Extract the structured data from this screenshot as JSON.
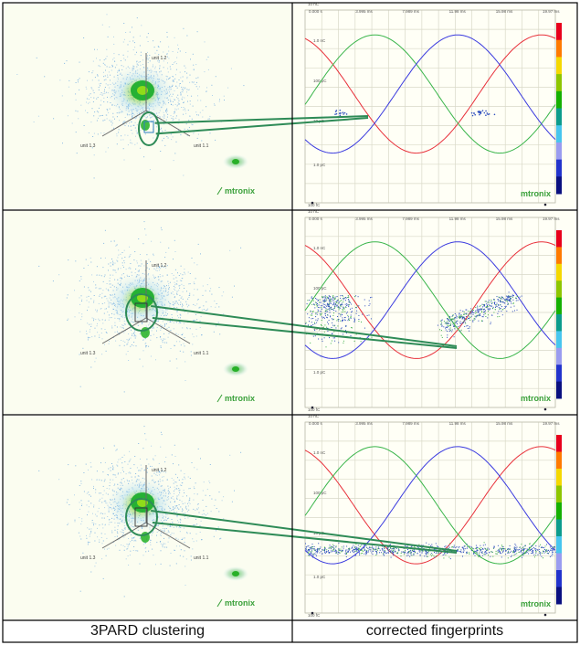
{
  "captions": {
    "left": "3PARD clustering",
    "right": "corrected fingerprints"
  },
  "cluster_plot": {
    "axis_labels": [
      "unit 1.2",
      "unit 1.3",
      "unit 1.1"
    ],
    "logo_text": "mtronix"
  },
  "fingerprint_plot": {
    "time_ticks": [
      "0.000 s",
      "3.995 ms",
      "7.989 ms",
      "11.98 ms",
      "15.98 ms",
      "19.97 ms"
    ],
    "charge_labels": [
      "10 nC",
      "1.0 nC",
      "100 pC",
      "10 pC",
      "1.0 pC",
      "100 fC"
    ],
    "logo_text": "mtronix"
  },
  "colors": {
    "background_left": "#fbfdf0",
    "background_right": "#fffff6",
    "highlight": "#2e8b57",
    "sine_red": "#e8303a",
    "sine_green": "#39b54a",
    "sine_blue": "#3a3adf",
    "pd_dots": "#2f4fbf",
    "colorbar": [
      "#e8001c",
      "#ff7a00",
      "#f5d800",
      "#8ec600",
      "#15b000",
      "#0c9c8c",
      "#47c6ee",
      "#9a9cf0",
      "#2233cc",
      "#0a1080"
    ]
  },
  "rows": [
    {
      "cluster_highlight": "center",
      "pd_pattern": "sparse-scatter"
    },
    {
      "cluster_highlight": "unit-1.1-cluster",
      "pd_pattern": "phase-resolved-clouds"
    },
    {
      "cluster_highlight": "main-cluster",
      "pd_pattern": "horizontal-band"
    }
  ]
}
